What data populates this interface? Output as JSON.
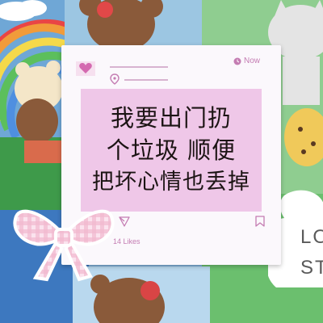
{
  "post": {
    "now_label": "Now",
    "message_lines": [
      "我要出门扔",
      "个垃圾 顺便",
      "把坏心情也丢掉"
    ],
    "likes": "14 Likes"
  },
  "background": {
    "cloud_text_1": "LO",
    "cloud_text_2": "ST"
  },
  "colors": {
    "accent_pink": "#c47cb2",
    "panel_pink": "#efc7e8",
    "card_white": "#fbf8fc"
  }
}
